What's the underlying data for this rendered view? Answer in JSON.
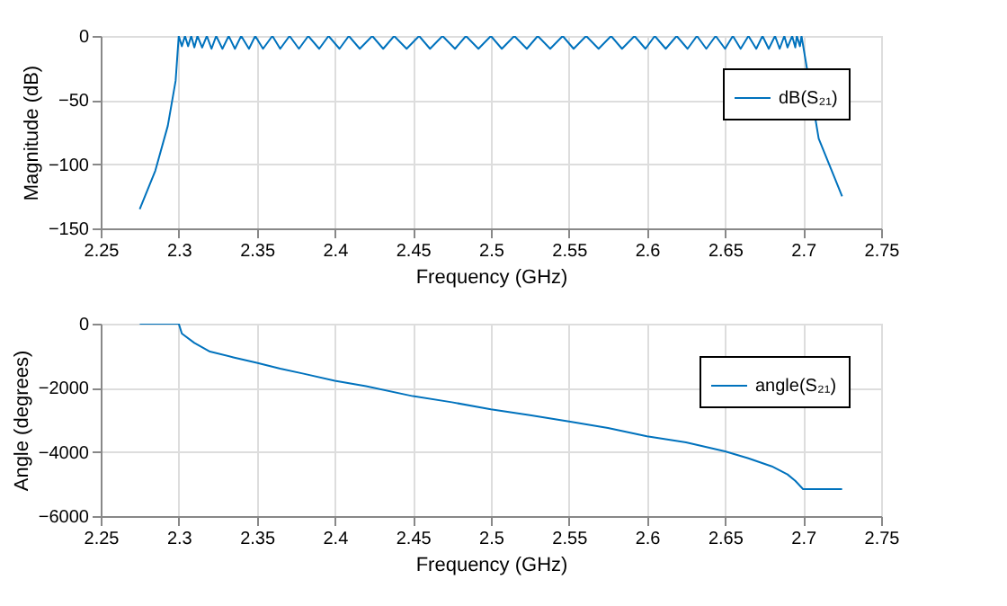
{
  "chart_data": [
    {
      "type": "line",
      "xlabel": "Frequency (GHz)",
      "ylabel": "Magnitude (dB)",
      "xlim": [
        2.25,
        2.75
      ],
      "xticks": [
        2.25,
        2.3,
        2.35,
        2.4,
        2.45,
        2.5,
        2.55,
        2.6,
        2.65,
        2.7,
        2.75
      ],
      "ylim": [
        -150,
        0
      ],
      "yticks": [
        -150,
        -100,
        -50,
        0
      ],
      "grid": true,
      "legend": "top right",
      "line_style": "solid",
      "series": [
        {
          "name": "dB(S₂₁)",
          "color": "#0072bd",
          "x": [
            2.275,
            2.285,
            2.293,
            2.298,
            2.3,
            2.302,
            2.304,
            2.306,
            2.308,
            2.31,
            2.312,
            2.315,
            2.318,
            2.321,
            2.324,
            2.328,
            2.332,
            2.336,
            2.34,
            2.345,
            2.349,
            2.354,
            2.36,
            2.365,
            2.371,
            2.377,
            2.383,
            2.39,
            2.396,
            2.403,
            2.409,
            2.416,
            2.424,
            2.431,
            2.438,
            2.446,
            2.454,
            2.461,
            2.469,
            2.477,
            2.484,
            2.492,
            2.5,
            2.507,
            2.515,
            2.523,
            2.53,
            2.538,
            2.546,
            2.553,
            2.561,
            2.569,
            2.577,
            2.584,
            2.592,
            2.599,
            2.605,
            2.612,
            2.619,
            2.626,
            2.632,
            2.638,
            2.644,
            2.65,
            2.655,
            2.66,
            2.665,
            2.67,
            2.674,
            2.678,
            2.682,
            2.685,
            2.688,
            2.69,
            2.693,
            2.695,
            2.696,
            2.698,
            2.699,
            2.71,
            2.72,
            2.725
          ],
          "values": [
            -135,
            -105,
            -70,
            -35,
            0,
            -8,
            0,
            -8,
            0,
            -9,
            0,
            -9,
            0,
            -10,
            0,
            -10,
            0,
            -10,
            0,
            -10,
            0,
            -10,
            0,
            -10,
            0,
            -10,
            0,
            -10,
            0,
            -10,
            0,
            -10,
            0,
            -10,
            0,
            -10,
            0,
            -10,
            0,
            -10,
            0,
            -10,
            0,
            -10,
            0,
            -10,
            0,
            -10,
            0,
            -10,
            0,
            -10,
            0,
            -10,
            0,
            -10,
            0,
            -10,
            0,
            -10,
            0,
            -10,
            0,
            -10,
            0,
            -10,
            0,
            -10,
            0,
            -10,
            0,
            -10,
            0,
            -9,
            0,
            -9,
            0,
            -8,
            0,
            -80,
            -110,
            -125
          ]
        }
      ]
    },
    {
      "type": "line",
      "xlabel": "Frequency (GHz)",
      "ylabel": "Angle (degrees)",
      "xlim": [
        2.25,
        2.75
      ],
      "xticks": [
        2.25,
        2.3,
        2.35,
        2.4,
        2.45,
        2.5,
        2.55,
        2.6,
        2.65,
        2.7,
        2.75
      ],
      "ylim": [
        -6000,
        0
      ],
      "yticks": [
        -6000,
        -4000,
        -2000,
        0
      ],
      "grid": true,
      "legend": "top right",
      "line_style": "solid",
      "series": [
        {
          "name": "angle(S₂₁)",
          "color": "#0072bd",
          "x": [
            2.275,
            2.3,
            2.302,
            2.31,
            2.32,
            2.335,
            2.35,
            2.365,
            2.38,
            2.4,
            2.42,
            2.45,
            2.475,
            2.5,
            2.525,
            2.55,
            2.575,
            2.6,
            2.625,
            2.65,
            2.665,
            2.68,
            2.69,
            2.695,
            2.7,
            2.71,
            2.725
          ],
          "values": [
            0,
            0,
            -310,
            -600,
            -870,
            -1050,
            -1220,
            -1400,
            -1560,
            -1780,
            -1950,
            -2260,
            -2450,
            -2670,
            -2850,
            -3050,
            -3250,
            -3510,
            -3700,
            -3980,
            -4200,
            -4450,
            -4700,
            -4900,
            -5160,
            -5160,
            -5160
          ]
        }
      ]
    }
  ]
}
